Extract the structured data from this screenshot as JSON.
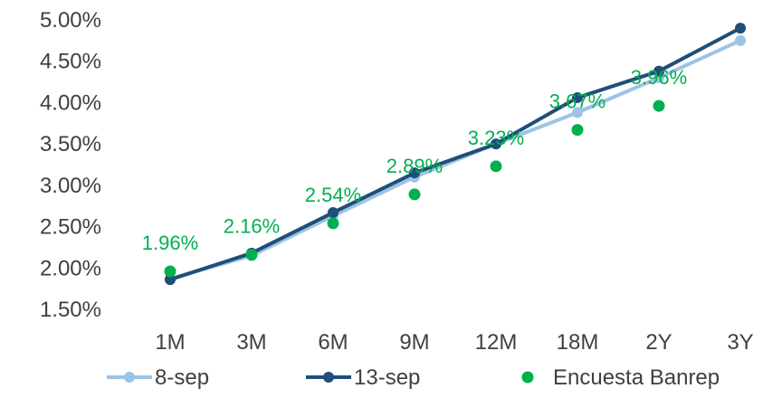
{
  "chart_data": {
    "type": "line",
    "categories": [
      "1M",
      "3M",
      "6M",
      "9M",
      "12M",
      "18M",
      "2Y",
      "3Y"
    ],
    "ylim": [
      1.5,
      5.0
    ],
    "yticks": [
      "1.50%",
      "2.00%",
      "2.50%",
      "3.00%",
      "3.50%",
      "4.00%",
      "4.50%",
      "5.00%"
    ],
    "grid": false,
    "legend": "bottom",
    "series": [
      {
        "name": "8-sep",
        "kind": "line",
        "color": "#9DC3E6",
        "values": [
          1.87,
          2.15,
          2.63,
          3.1,
          3.5,
          3.88,
          4.3,
          4.75
        ]
      },
      {
        "name": "13-sep",
        "kind": "line",
        "color": "#1F4E79",
        "values": [
          1.86,
          2.18,
          2.67,
          3.15,
          3.5,
          4.06,
          4.38,
          4.9
        ]
      },
      {
        "name": "Encuesta Banrep",
        "kind": "scatter",
        "color": "#00B050",
        "values": [
          1.96,
          2.16,
          2.54,
          2.89,
          3.23,
          3.67,
          3.96,
          null
        ],
        "labels": [
          "1.96%",
          "2.16%",
          "2.54%",
          "2.89%",
          "3.23%",
          "3.67%",
          "3.96%",
          ""
        ]
      }
    ]
  }
}
